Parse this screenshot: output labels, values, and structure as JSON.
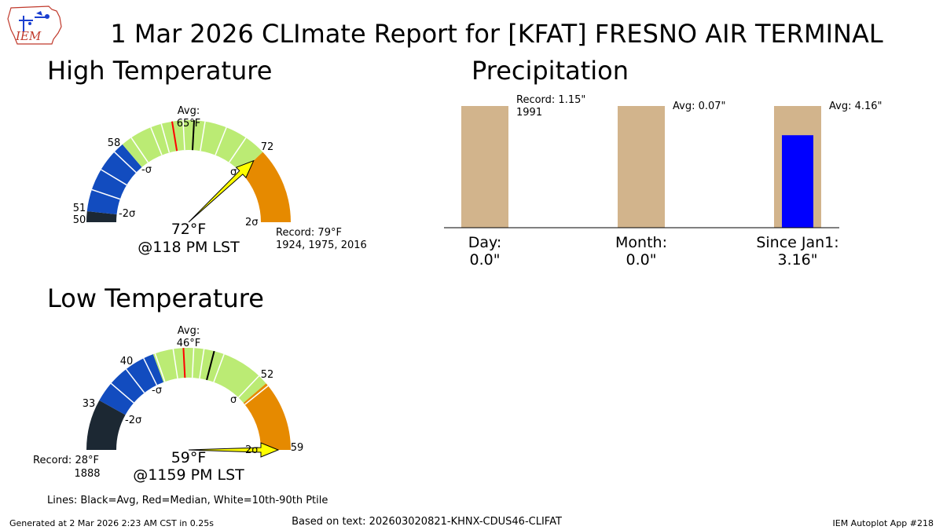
{
  "title": "1 Mar 2026 CLImate Report for [KFAT] FRESNO AIR TERMINAL",
  "logo_text": "IEM",
  "colors": {
    "band_2sigma_low": "#1c2833",
    "band_1sigma_low": "#124cbf",
    "band_normal": "#bbeb74",
    "band_1sigma_high": "#e68a00",
    "band_2sigma_high": "#e68a00",
    "needle": "#ffff00",
    "avg_line": "#000000",
    "median_line": "#ff0000",
    "ptile_line": "#ffffff",
    "precip_avg_bar": "#d2b48c",
    "precip_obs_bar": "#0000ff"
  },
  "chart_data": [
    {
      "type": "gauge",
      "panel_title": "High Temperature",
      "range": [
        50,
        79
      ],
      "boundaries": [
        50,
        51,
        58,
        65,
        72,
        79
      ],
      "sigma_labels": [
        "-2σ",
        "-σ",
        "σ",
        "2σ"
      ],
      "avg_label": "Avg:",
      "avg_value_label": "65°F",
      "avg": 65,
      "median": 63,
      "ptile_lines": [
        53,
        55,
        57,
        59,
        61,
        62,
        64,
        66,
        68,
        70
      ],
      "observed": 72,
      "observed_label": "72°F",
      "time_label": "@118 PM LST",
      "tick_labels": [
        "51",
        "50",
        "58",
        "72"
      ],
      "record_label": "Record: 79°F",
      "record_years": "1924, 1975, 2016"
    },
    {
      "type": "gauge",
      "panel_title": "Low Temperature",
      "range": [
        28,
        59
      ],
      "boundaries": [
        28,
        33,
        40,
        46,
        52,
        59
      ],
      "sigma_labels": [
        "-2σ",
        "-σ",
        "σ",
        "2σ"
      ],
      "avg_label": "Avg:",
      "avg_value_label": "46°F",
      "avg": 46,
      "median": 43,
      "ptile_lines": [
        35,
        37,
        39,
        40.2,
        42,
        44,
        45,
        47,
        51,
        52.3
      ],
      "observed": 59,
      "observed_label": "59°F",
      "time_label": "@1159 PM LST",
      "tick_labels": [
        "40",
        "33",
        "52",
        "59"
      ],
      "record_label": "Record: 28°F",
      "record_years": "1888"
    },
    {
      "type": "bar",
      "panel_title": "Precipitation",
      "categories": [
        "Day:",
        "Month:",
        "Since Jan1:"
      ],
      "observed_labels": [
        "0.0\"",
        "0.0\"",
        "3.16\""
      ],
      "observed_fraction": [
        0,
        0,
        0.76
      ],
      "annotations": [
        {
          "line1": "Record: 1.15\"",
          "line2": "1991"
        },
        {
          "line1": "Avg: 0.07\"",
          "line2": ""
        },
        {
          "line1": "Avg: 4.16\"",
          "line2": ""
        }
      ]
    }
  ],
  "legend_note": "Lines: Black=Avg, Red=Median, White=10th-90th Ptile",
  "footer": {
    "generated": "Generated at 2 Mar 2026 2:23 AM CST in 0.25s",
    "based_on": "Based on text: 202603020821-KHNX-CDUS46-CLIFAT",
    "app": "IEM Autoplot App #218"
  }
}
